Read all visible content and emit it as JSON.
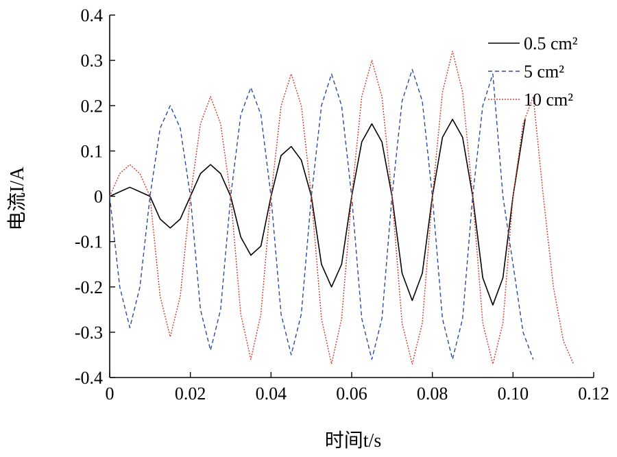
{
  "chart_data": {
    "type": "line",
    "xlabel": "时间t/s",
    "ylabel": "电流I/A",
    "xlim": [
      0,
      0.12
    ],
    "ylim": [
      -0.4,
      0.4
    ],
    "x_ticks": [
      "0",
      "0.02",
      "0.04",
      "0.06",
      "0.08",
      "0.10",
      "0.12"
    ],
    "y_ticks": [
      "0.4",
      "0.3",
      "0.2",
      "0.1",
      "0",
      "-0.1",
      "-0.2",
      "-0.3",
      "-0.4"
    ],
    "legend_position": "top-right",
    "series": [
      {
        "name": "0.5 cm²",
        "color": "#000000",
        "dash": "solid",
        "x": [
          0,
          0.0025,
          0.005,
          0.0075,
          0.01,
          0.0125,
          0.015,
          0.0175,
          0.02,
          0.0225,
          0.025,
          0.0275,
          0.03,
          0.0325,
          0.035,
          0.0375,
          0.04,
          0.0425,
          0.045,
          0.0475,
          0.05,
          0.0525,
          0.055,
          0.0575,
          0.06,
          0.0625,
          0.065,
          0.0675,
          0.07,
          0.0725,
          0.075,
          0.0775,
          0.08,
          0.0825,
          0.085,
          0.0875,
          0.09,
          0.0925,
          0.095,
          0.0975,
          0.1,
          0.103
        ],
        "y": [
          0,
          0.01,
          0.02,
          0.01,
          0.0,
          -0.05,
          -0.07,
          -0.05,
          0.0,
          0.05,
          0.07,
          0.05,
          0.0,
          -0.09,
          -0.13,
          -0.11,
          0.0,
          0.09,
          0.11,
          0.08,
          0.0,
          -0.15,
          -0.2,
          -0.15,
          0.0,
          0.12,
          0.16,
          0.12,
          0.0,
          -0.17,
          -0.23,
          -0.17,
          0.0,
          0.13,
          0.17,
          0.13,
          0.0,
          -0.18,
          -0.24,
          -0.18,
          0.0,
          0.17
        ]
      },
      {
        "name": "5 cm²",
        "color": "#2a4a9c",
        "dash": "dashed",
        "x": [
          0,
          0.0025,
          0.005,
          0.0075,
          0.01,
          0.0125,
          0.015,
          0.0175,
          0.02,
          0.0225,
          0.025,
          0.0275,
          0.03,
          0.0325,
          0.035,
          0.0375,
          0.04,
          0.0425,
          0.045,
          0.0475,
          0.05,
          0.0525,
          0.055,
          0.0575,
          0.06,
          0.0625,
          0.065,
          0.0675,
          0.07,
          0.0725,
          0.075,
          0.0775,
          0.08,
          0.0825,
          0.085,
          0.0875,
          0.09,
          0.0925,
          0.095,
          0.0975,
          0.1,
          0.1025,
          0.105
        ],
        "y": [
          0,
          -0.2,
          -0.29,
          -0.2,
          0.0,
          0.15,
          0.2,
          0.15,
          0.0,
          -0.25,
          -0.34,
          -0.25,
          0.0,
          0.18,
          0.24,
          0.18,
          0.0,
          -0.26,
          -0.35,
          -0.26,
          0.0,
          0.2,
          0.27,
          0.2,
          0.0,
          -0.27,
          -0.36,
          -0.27,
          0.0,
          0.21,
          0.28,
          0.21,
          0.0,
          -0.27,
          -0.36,
          -0.27,
          0.0,
          0.2,
          0.27,
          0.0,
          -0.15,
          -0.3,
          -0.36
        ]
      },
      {
        "name": "10 cm²",
        "color": "#d23a2a",
        "dash": "dotted",
        "x": [
          0,
          0.0025,
          0.005,
          0.0075,
          0.01,
          0.0125,
          0.015,
          0.0175,
          0.02,
          0.0225,
          0.025,
          0.0275,
          0.03,
          0.0325,
          0.035,
          0.0375,
          0.04,
          0.0425,
          0.045,
          0.0475,
          0.05,
          0.0525,
          0.055,
          0.0575,
          0.06,
          0.0625,
          0.065,
          0.0675,
          0.07,
          0.0725,
          0.075,
          0.0775,
          0.08,
          0.0825,
          0.085,
          0.0875,
          0.09,
          0.0925,
          0.095,
          0.0975,
          0.1,
          0.1025,
          0.105,
          0.1075,
          0.11,
          0.1125,
          0.115
        ],
        "y": [
          0,
          0.05,
          0.07,
          0.05,
          0.0,
          -0.22,
          -0.31,
          -0.22,
          0.0,
          0.16,
          0.22,
          0.16,
          0.0,
          -0.26,
          -0.36,
          -0.26,
          0.0,
          0.2,
          0.27,
          0.2,
          0.0,
          -0.27,
          -0.37,
          -0.27,
          0.0,
          0.22,
          0.3,
          0.22,
          0.0,
          -0.28,
          -0.37,
          -0.28,
          0.0,
          0.23,
          0.32,
          0.23,
          0.0,
          -0.28,
          -0.37,
          -0.28,
          0.0,
          0.16,
          0.22,
          0.0,
          -0.2,
          -0.32,
          -0.37
        ]
      }
    ]
  }
}
